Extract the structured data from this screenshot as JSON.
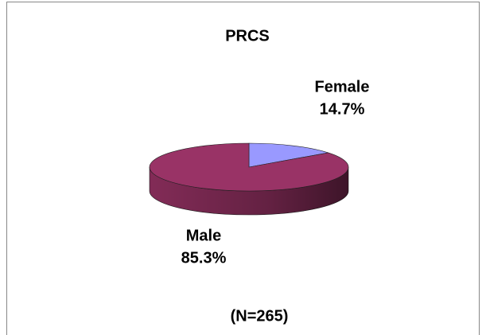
{
  "chart_data": {
    "type": "pie",
    "title": "PRCS",
    "annotation": "(N=265)",
    "categories": [
      "Female",
      "Male"
    ],
    "values": [
      14.7,
      85.3
    ],
    "value_labels": [
      "14.7%",
      "85.3%"
    ],
    "colors": [
      "#9999ff",
      "#993366"
    ]
  }
}
